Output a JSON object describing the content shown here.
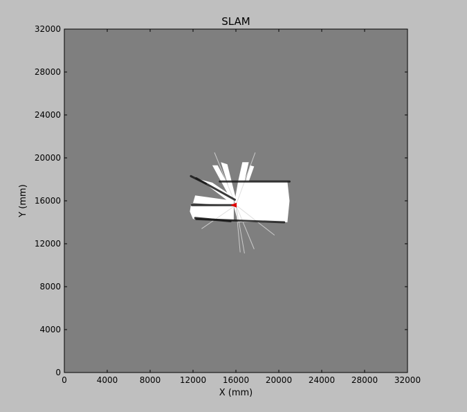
{
  "chart_data": {
    "type": "heatmap",
    "title": "SLAM",
    "xlabel": "X (mm)",
    "ylabel": "Y (mm)",
    "xlim": [
      0,
      32000
    ],
    "ylim": [
      0,
      32000
    ],
    "xticks": [
      0,
      4000,
      8000,
      12000,
      16000,
      20000,
      24000,
      28000,
      32000
    ],
    "yticks": [
      0,
      4000,
      8000,
      12000,
      16000,
      20000,
      24000,
      28000,
      32000
    ],
    "xtick_labels": [
      "0",
      "4000",
      "8000",
      "12000",
      "16000",
      "20000",
      "24000",
      "28000",
      "32000"
    ],
    "ytick_labels": [
      "0",
      "4000",
      "8000",
      "12000",
      "16000",
      "20000",
      "24000",
      "28000",
      "32000"
    ],
    "grid": false,
    "colors": {
      "figure_background": "#bfbfbf",
      "unknown_space": "#7f7f7f",
      "free_space": "#ffffff",
      "obstacle": "#1a1a1a",
      "robot": "#e00000"
    },
    "robot_pose": {
      "x": 16000,
      "y": 15600,
      "heading": "west"
    },
    "free_regions": [
      {
        "kind": "polygon",
        "points": [
          [
            16200,
            17800
          ],
          [
            20800,
            17800
          ],
          [
            21000,
            16000
          ],
          [
            20800,
            14000
          ],
          [
            16200,
            14000
          ],
          [
            15800,
            15500
          ]
        ]
      },
      {
        "kind": "polygon",
        "points": [
          [
            11800,
            15600
          ],
          [
            15800,
            15600
          ],
          [
            15800,
            14200
          ],
          [
            12000,
            14300
          ],
          [
            11700,
            15000
          ]
        ]
      },
      {
        "kind": "polygon",
        "points": [
          [
            12200,
            16500
          ],
          [
            15800,
            16000
          ],
          [
            15800,
            15500
          ],
          [
            12000,
            15800
          ]
        ]
      },
      {
        "kind": "polygon",
        "points": [
          [
            12600,
            18000
          ],
          [
            13800,
            17700
          ],
          [
            16000,
            16200
          ],
          [
            15500,
            15800
          ]
        ]
      },
      {
        "kind": "polygon",
        "points": [
          [
            13800,
            19300
          ],
          [
            14300,
            19300
          ],
          [
            16000,
            16100
          ],
          [
            15600,
            16000
          ]
        ]
      },
      {
        "kind": "polygon",
        "points": [
          [
            14600,
            19600
          ],
          [
            15200,
            19400
          ],
          [
            16000,
            16200
          ],
          [
            15700,
            16100
          ]
        ]
      },
      {
        "kind": "polygon",
        "points": [
          [
            16600,
            19600
          ],
          [
            17200,
            19600
          ],
          [
            16800,
            17800
          ],
          [
            16200,
            17800
          ]
        ]
      },
      {
        "kind": "polygon",
        "points": [
          [
            17300,
            19300
          ],
          [
            17700,
            19200
          ],
          [
            17200,
            17800
          ],
          [
            16900,
            17800
          ]
        ]
      }
    ],
    "obstacle_segments": [
      [
        [
          14500,
          17800
        ],
        [
          21000,
          17800
        ]
      ],
      [
        [
          12300,
          14300
        ],
        [
          20500,
          14000
        ]
      ],
      [
        [
          11800,
          18300
        ],
        [
          13200,
          17600
        ]
      ],
      [
        [
          12300,
          18100
        ],
        [
          15900,
          16100
        ]
      ],
      [
        [
          11900,
          15600
        ],
        [
          15800,
          15600
        ]
      ],
      [
        [
          12200,
          14400
        ],
        [
          15500,
          14100
        ]
      ]
    ],
    "rays": [
      [
        [
          16000,
          15600
        ],
        [
          14000,
          20500
        ]
      ],
      [
        [
          16000,
          15600
        ],
        [
          17800,
          20500
        ]
      ],
      [
        [
          16000,
          15600
        ],
        [
          16400,
          11200
        ]
      ],
      [
        [
          16000,
          15600
        ],
        [
          16800,
          11100
        ]
      ],
      [
        [
          16000,
          15600
        ],
        [
          17700,
          11500
        ]
      ],
      [
        [
          16000,
          15600
        ],
        [
          19600,
          12800
        ]
      ],
      [
        [
          16000,
          15600
        ],
        [
          12800,
          13400
        ]
      ]
    ]
  }
}
